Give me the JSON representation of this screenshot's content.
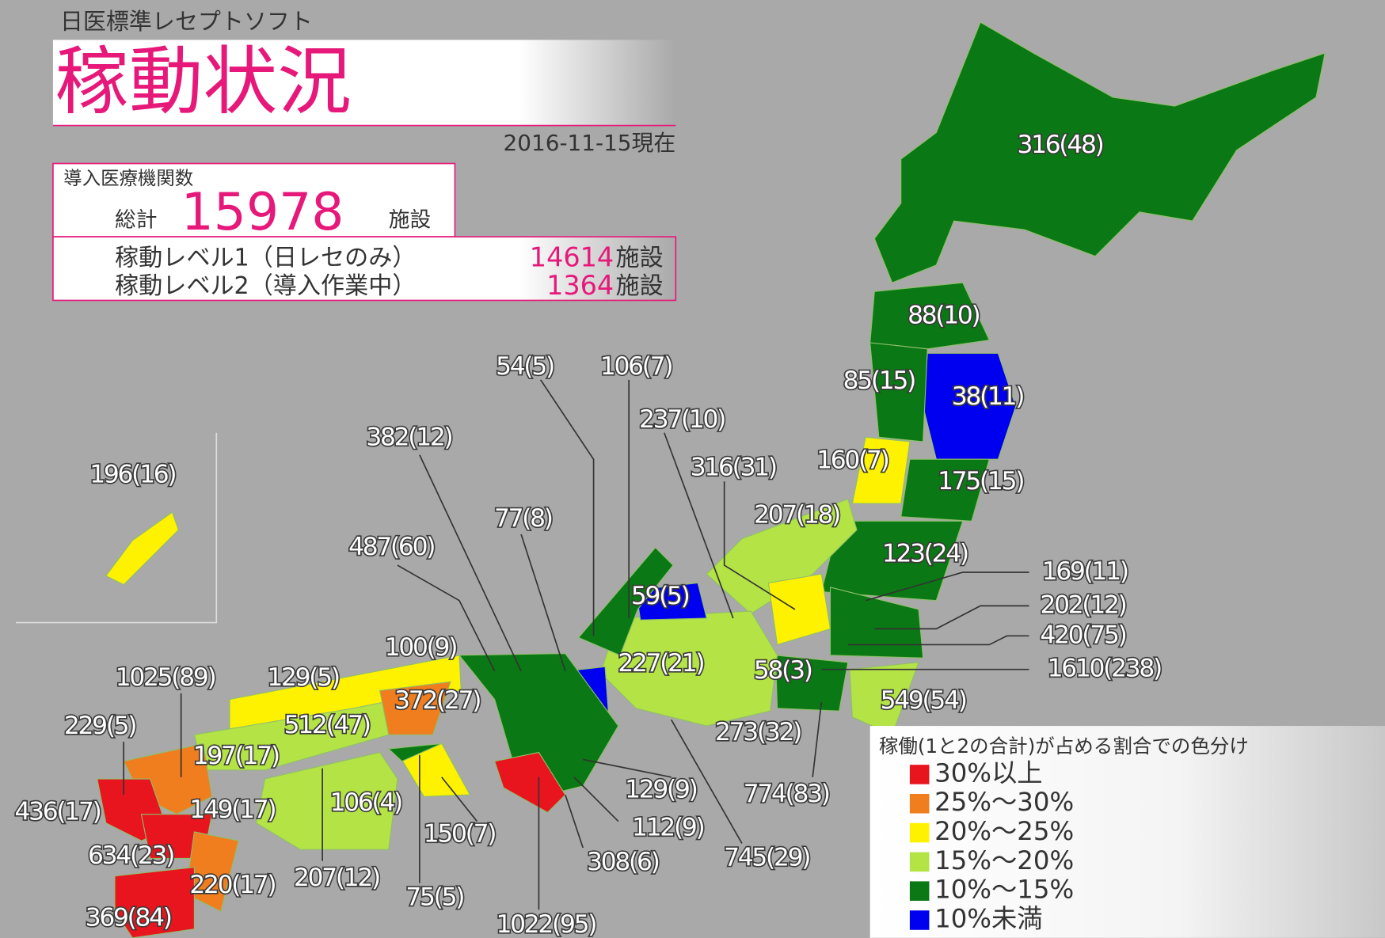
{
  "header": {
    "brand": "日医標準レセプトソフト",
    "title": "稼動状況",
    "date": "2016-11-15現在"
  },
  "total": {
    "heading": "導入医療機関数",
    "label": "総計",
    "value": 15978,
    "unit": "施設"
  },
  "levels": [
    {
      "label": "稼動レベル1（日レセのみ）",
      "value": 14614,
      "unit": "施設"
    },
    {
      "label": "稼動レベル2（導入作業中）",
      "value": 1364,
      "unit": "施設"
    }
  ],
  "legend": {
    "title": "稼働(1と2の合計)が占める割合での色分け",
    "items": [
      {
        "label": "30%以上",
        "color": "#e8141e"
      },
      {
        "label": "25%～30%",
        "color": "#f07d1e"
      },
      {
        "label": "20%～25%",
        "color": "#fff200"
      },
      {
        "label": "15%～20%",
        "color": "#b4e346"
      },
      {
        "label": "10%～15%",
        "color": "#0a7814"
      },
      {
        "label": "10%未満",
        "color": "#0000f0"
      }
    ]
  },
  "labels": [
    "316(48)",
    "88(10)",
    "85(15)",
    "38(11)",
    "160(7)",
    "175(15)",
    "316(31)",
    "207(18)",
    "237(10)",
    "106(7)",
    "54(5)",
    "382(12)",
    "196(16)",
    "77(8)",
    "487(60)",
    "123(24)",
    "169(11)",
    "202(12)",
    "420(75)",
    "1610(238)",
    "59(5)",
    "100(9)",
    "227(21)",
    "58(3)",
    "1025(89)",
    "129(5)",
    "372(27)",
    "549(54)",
    "229(5)",
    "512(47)",
    "273(32)",
    "197(17)",
    "774(83)",
    "129(9)",
    "436(17)",
    "149(17)",
    "106(4)",
    "112(9)",
    "150(7)",
    "634(23)",
    "308(6)",
    "745(29)",
    "220(17)",
    "207(12)",
    "75(5)",
    "369(84)",
    "1022(95)"
  ]
}
